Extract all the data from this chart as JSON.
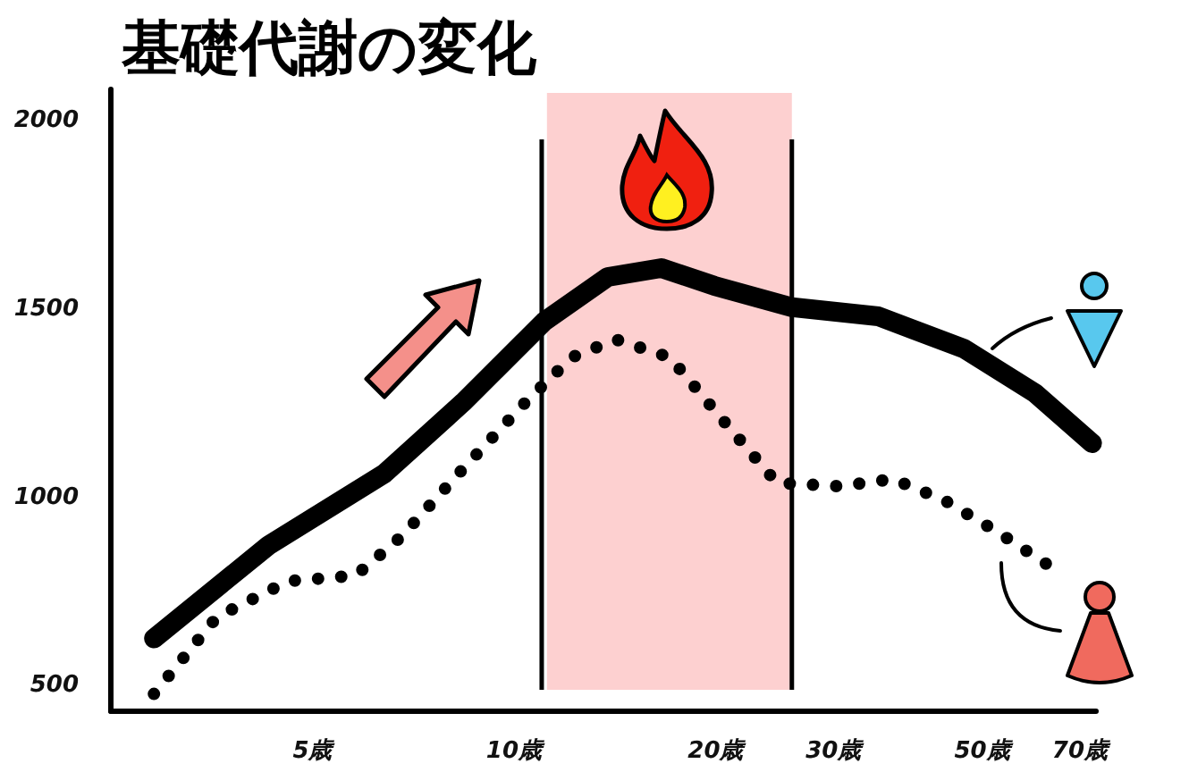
{
  "chart_data": {
    "type": "line",
    "title": "基礎代謝の変化",
    "log": "x",
    "xlim": [
      2.5,
      74
    ],
    "ylim": [
      430,
      2080
    ],
    "xticks": [
      {
        "value": 5,
        "label": "5歳"
      },
      {
        "value": 10,
        "label": "10歳"
      },
      {
        "value": 20,
        "label": "20歳"
      },
      {
        "value": 30,
        "label": "30歳"
      },
      {
        "value": 50,
        "label": "50歳"
      },
      {
        "value": 70,
        "label": "70歳"
      }
    ],
    "yticks": [
      500,
      1000,
      1500,
      2000
    ],
    "series": [
      {
        "color": "#000000",
        "line_style": "solid",
        "x": [
          2.9,
          4.3,
          6.4,
          8.4,
          11.1,
          13.8,
          16.6,
          19.9,
          26,
          35,
          47,
          60,
          73
        ],
        "values": [
          623,
          870,
          1060,
          1250,
          1464,
          1582,
          1606,
          1559,
          1502,
          1478,
          1392,
          1274,
          1141
        ]
      },
      {
        "color": "#000000",
        "line_style": "dotted",
        "x": [
          2.9,
          3.6,
          4.6,
          5.8,
          6.8,
          8.4,
          10.4,
          12.2,
          14.2,
          17.1,
          20.5,
          24.7,
          30.6,
          36.8,
          44,
          53,
          64
        ],
        "values": [
          476,
          680,
          775,
          790,
          894,
          1074,
          1250,
          1369,
          1416,
          1369,
          1203,
          1036,
          1027,
          1046,
          989,
          903,
          808
        ]
      }
    ],
    "bands": [
      {
        "axis": "x",
        "from": 11.2,
        "to": 26,
        "color": "#fdd0d0"
      }
    ],
    "ref_lines": [
      {
        "axis": "x",
        "value": 11,
        "color": "#000000"
      },
      {
        "axis": "x",
        "value": 26,
        "color": "#000000"
      }
    ]
  }
}
